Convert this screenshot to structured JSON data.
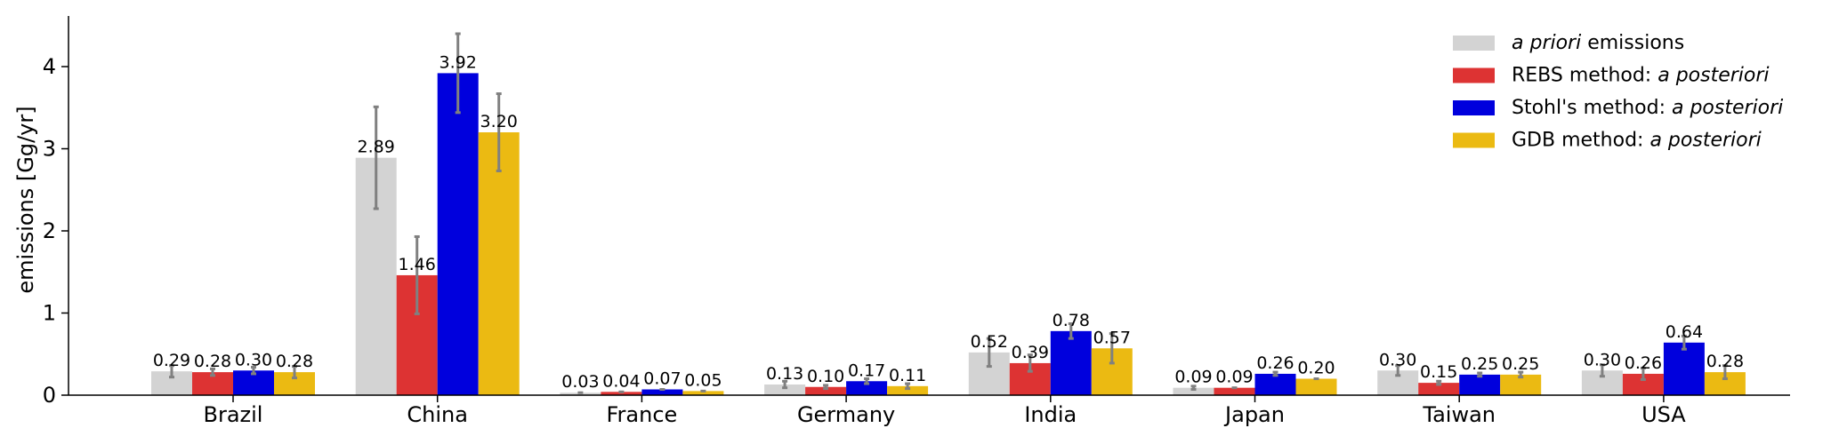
{
  "chart_data": {
    "type": "bar",
    "ylabel": "emissions [Gg/yr]",
    "ylim": [
      0,
      4.5
    ],
    "yticks": [
      0,
      1,
      2,
      3,
      4
    ],
    "grid": false,
    "legend_position": "top-right",
    "categories": [
      "Brazil",
      "China",
      "France",
      "Germany",
      "India",
      "Japan",
      "Taiwan",
      "USA"
    ],
    "series": [
      {
        "name_parts": [
          {
            "text": "a priori",
            "italic": true
          },
          {
            "text": " emissions",
            "italic": false
          }
        ],
        "color": "#d3d3d3",
        "values": [
          0.29,
          2.89,
          0.03,
          0.13,
          0.52,
          0.09,
          0.3,
          0.3
        ],
        "labels": [
          "0.29",
          "2.89",
          "0.03",
          "0.13",
          "0.52",
          "0.09",
          "0.30",
          "0.30"
        ],
        "error": [
          0.07,
          0.62,
          0.0,
          0.04,
          0.17,
          0.02,
          0.06,
          0.07
        ]
      },
      {
        "name_parts": [
          {
            "text": "REBS method: ",
            "italic": false
          },
          {
            "text": "a posteriori",
            "italic": true
          }
        ],
        "color": "#dd3333",
        "values": [
          0.28,
          1.46,
          0.04,
          0.1,
          0.39,
          0.09,
          0.15,
          0.26
        ],
        "labels": [
          "0.28",
          "1.46",
          "0.04",
          "0.10",
          "0.39",
          "0.09",
          "0.15",
          "0.26"
        ],
        "error": [
          0.04,
          0.47,
          0.0,
          0.02,
          0.1,
          0.0,
          0.02,
          0.07
        ]
      },
      {
        "name_parts": [
          {
            "text": "Stohl's method: ",
            "italic": false
          },
          {
            "text": "a posteriori",
            "italic": true
          }
        ],
        "color": "#0000dd",
        "values": [
          0.3,
          3.92,
          0.07,
          0.17,
          0.78,
          0.26,
          0.25,
          0.64
        ],
        "labels": [
          "0.30",
          "3.92",
          "0.07",
          "0.17",
          "0.78",
          "0.26",
          "0.25",
          "0.64"
        ],
        "error": [
          0.04,
          0.48,
          0.0,
          0.03,
          0.09,
          0.02,
          0.02,
          0.08
        ]
      },
      {
        "name_parts": [
          {
            "text": "GDB method: ",
            "italic": false
          },
          {
            "text": "a posteriori",
            "italic": true
          }
        ],
        "color": "#ebba12",
        "values": [
          0.28,
          3.2,
          0.05,
          0.11,
          0.57,
          0.2,
          0.25,
          0.28
        ],
        "labels": [
          "0.28",
          "3.20",
          "0.05",
          "0.11",
          "0.57",
          "0.20",
          "0.25",
          "0.28"
        ],
        "error": [
          0.07,
          0.47,
          0.0,
          0.03,
          0.18,
          0.0,
          0.03,
          0.08
        ]
      }
    ]
  }
}
